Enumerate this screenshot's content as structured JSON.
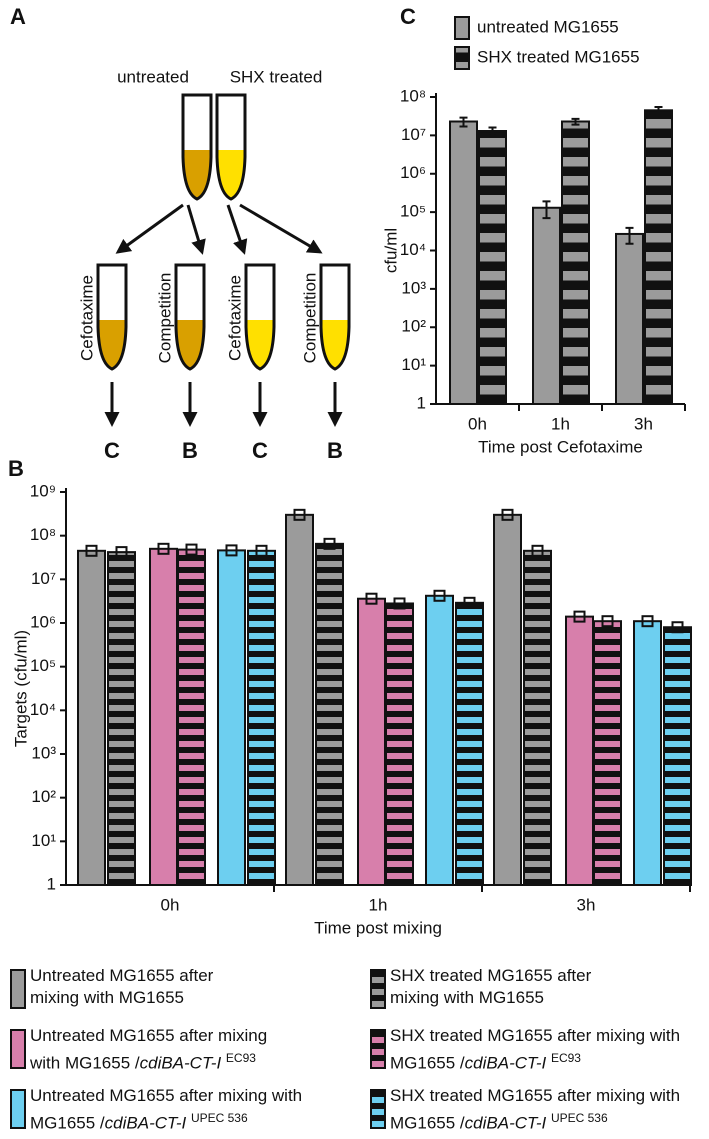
{
  "panel_a": {
    "label": "A",
    "tubes": [
      "untreated",
      "SHX treated"
    ],
    "treatments": [
      "Cefotaxime",
      "Competition",
      "Cefotaxime",
      "Competition"
    ],
    "outcomes": [
      "C",
      "B",
      "C",
      "B"
    ]
  },
  "chart_data": [
    {
      "type": "bar",
      "panel": "C",
      "categories": [
        "0h",
        "1h",
        "3h"
      ],
      "xlabel": "Time post Cefotaxime",
      "ylabel": "cfu/ml",
      "log_y": true,
      "ylim": [
        1,
        100000000
      ],
      "yticks": [
        1,
        {
          "value": 10,
          "label": "10¹"
        },
        {
          "value": 100,
          "label": "10²"
        },
        {
          "value": 1000,
          "label": "10³"
        },
        {
          "value": 10000,
          "label": "10⁴"
        },
        {
          "value": 100000,
          "label": "10⁵"
        },
        {
          "value": 1000000,
          "label": "10⁶"
        },
        {
          "value": 10000000,
          "label": "10⁷"
        },
        {
          "value": 100000000,
          "label": "10⁸"
        }
      ],
      "series": [
        {
          "name": "untreated MG1655",
          "color": "#9b9b9b",
          "values": [
            23000000,
            130000,
            27000
          ],
          "errors": [
            6000000,
            60000,
            12000
          ]
        },
        {
          "name": "SHX treated MG1655",
          "color": "#9b9b9b",
          "hatch": "stripes",
          "values": [
            13000000,
            23000000,
            45000000
          ],
          "errors": [
            3000000,
            4000000,
            10000000
          ]
        }
      ]
    },
    {
      "type": "bar",
      "panel": "B",
      "categories": [
        "0h",
        "1h",
        "3h"
      ],
      "xlabel": "Time post mixing",
      "ylabel": "Targets (cfu/ml)",
      "log_y": true,
      "ylim": [
        1,
        1000000000
      ],
      "yticks": [
        1,
        {
          "value": 10,
          "label": "10¹"
        },
        {
          "value": 100,
          "label": "10²"
        },
        {
          "value": 1000,
          "label": "10³"
        },
        {
          "value": 10000,
          "label": "10⁴"
        },
        {
          "value": 100000,
          "label": "10⁵"
        },
        {
          "value": 1000000,
          "label": "10⁶"
        },
        {
          "value": 10000000,
          "label": "10⁷"
        },
        {
          "value": 100000000,
          "label": "10⁸"
        },
        {
          "value": 1000000000,
          "label": "10⁹"
        }
      ],
      "series": [
        {
          "name": "Untreated MG1655 after mixing with MG1655",
          "color": "#9b9b9b",
          "values": [
            45000000,
            300000000,
            300000000
          ]
        },
        {
          "name": "SHX treated MG1655 after mixing with MG1655",
          "color": "#9b9b9b",
          "hatch": "stripes",
          "values": [
            42000000,
            65000000,
            45000000
          ]
        },
        {
          "name": "Untreated MG1655 after mixing with MG1655 /",
          "genotype": "cdiBA-CT-I",
          "strain": "EC93",
          "color": "#d77fab",
          "values": [
            50000000,
            3600000,
            1400000
          ]
        },
        {
          "name": "SHX treated MG1655 after mixing with MG1655 /",
          "genotype": "cdiBA-CT-I",
          "strain": "EC93",
          "color": "#d77fab",
          "hatch": "stripes",
          "values": [
            48000000,
            2800000,
            1100000
          ]
        },
        {
          "name": "Untreated MG1655 after mixing with MG1655 /",
          "genotype": "cdiBA-CT-I",
          "strain": "UPEC 536",
          "color": "#6dcff0",
          "values": [
            46000000,
            4200000,
            1100000
          ]
        },
        {
          "name": "SHX treated MG1655 after mixing with MG1655 /",
          "genotype": "cdiBA-CT-I",
          "strain": "UPEC 536",
          "color": "#6dcff0",
          "hatch": "stripes",
          "values": [
            45000000,
            2900000,
            800000
          ]
        }
      ]
    }
  ]
}
